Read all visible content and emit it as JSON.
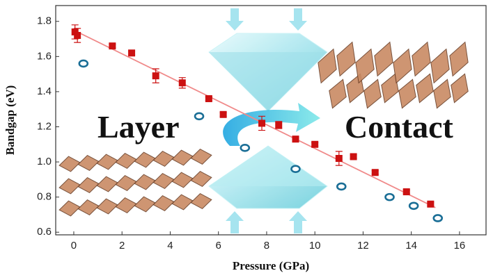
{
  "chart_data": {
    "type": "scatter",
    "x_label": "Pressure (GPa)",
    "y_label": "Bandgap (eV)",
    "annotations": [
      "Layer",
      "Contact"
    ],
    "xlim": [
      -0.75,
      17.1
    ],
    "ylim": [
      0.585,
      1.89
    ],
    "xticks": [
      0,
      2,
      4,
      6,
      8,
      10,
      12,
      14,
      16
    ],
    "yticks": [
      0.6,
      0.8,
      {
        "value": 1.0,
        "label": "1.0"
      },
      1.2,
      1.4,
      1.6,
      1.8
    ],
    "series": [
      {
        "marker": "line",
        "color": "#f08a8a",
        "x": [
          0,
          15
        ],
        "values": [
          1.75,
          0.74
        ]
      },
      {
        "marker": "square",
        "color": "#cc1111",
        "x": [
          0.05,
          0.15,
          1.6,
          2.4,
          3.4,
          4.5,
          5.6,
          6.2,
          7.8,
          8.5,
          9.2,
          10.0,
          11.0,
          11.6,
          12.5,
          13.8,
          14.8
        ],
        "values": [
          1.74,
          1.72,
          1.66,
          1.62,
          1.49,
          1.45,
          1.36,
          1.27,
          1.22,
          1.21,
          1.13,
          1.1,
          1.02,
          1.03,
          0.94,
          0.83,
          0.76
        ],
        "errors": [
          0.04,
          0.04,
          0.01,
          0.01,
          0.04,
          0.03,
          0.01,
          0.01,
          0.04,
          0.02,
          0.01,
          0.01,
          0.04,
          0.01,
          0.01,
          0.01,
          0.01
        ]
      },
      {
        "marker": "open-circle",
        "color": "#1a6e96",
        "x": [
          0.4,
          5.2,
          7.1,
          9.2,
          11.1,
          13.1,
          14.1,
          15.1
        ],
        "values": [
          1.56,
          1.26,
          1.08,
          0.96,
          0.86,
          0.8,
          0.75,
          0.68
        ]
      }
    ]
  }
}
